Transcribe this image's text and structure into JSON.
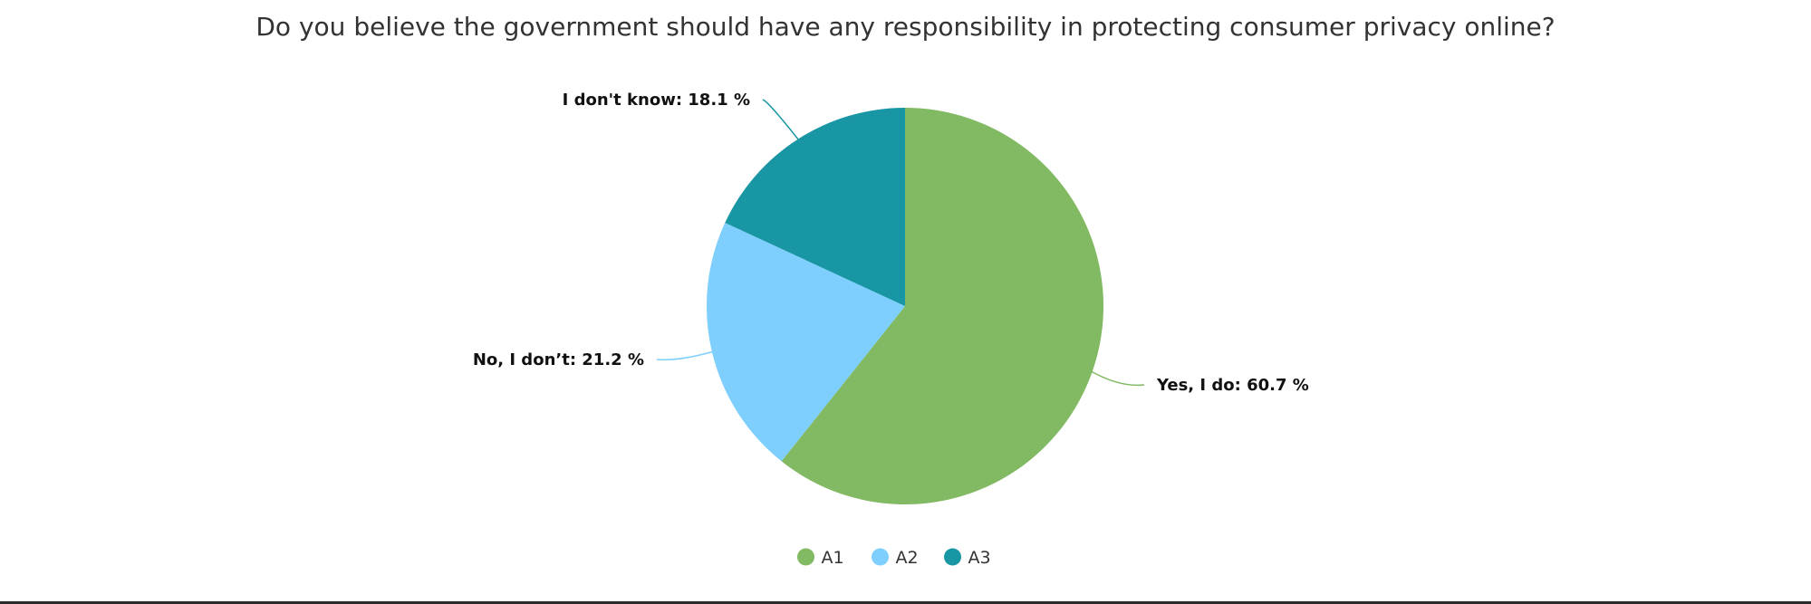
{
  "chart_data": {
    "type": "pie",
    "title": "Do you believe the government should have any responsibility in protecting consumer privacy online?",
    "slices": [
      {
        "label": "Yes, I do",
        "value": 60.7,
        "legend": "A1",
        "color": "#82b963"
      },
      {
        "label": "No, I don’t",
        "value": 21.2,
        "legend": "A2",
        "color": "#7ecffd"
      },
      {
        "label": "I don't know",
        "value": 18.1,
        "legend": "A3",
        "color": "#1896a3"
      }
    ],
    "label_format": "{label}: {value} %",
    "start_angle_deg": 0,
    "direction": "clockwise",
    "legend_position": "bottom-center"
  }
}
